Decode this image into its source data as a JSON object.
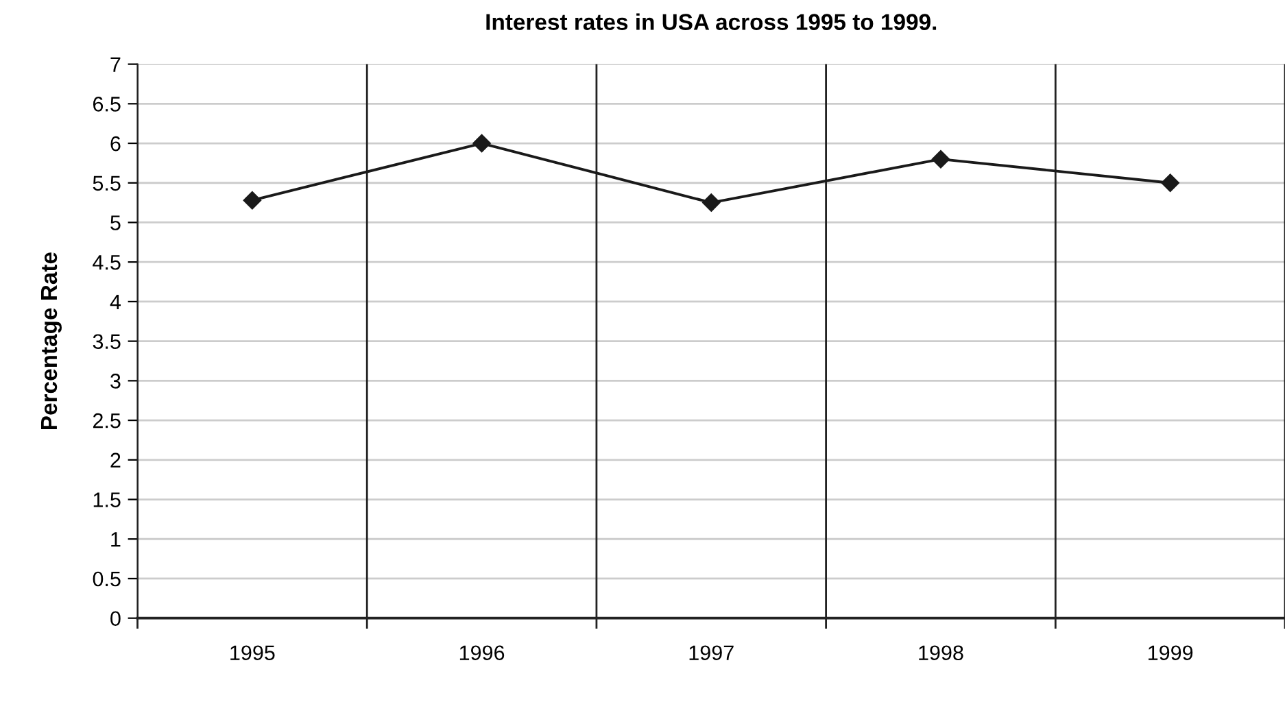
{
  "chart_data": {
    "type": "line",
    "title": "Interest rates in USA across 1995 to 1999.",
    "ylabel": "Percentage Rate",
    "categories": [
      "1995",
      "1996",
      "1997",
      "1998",
      "1999"
    ],
    "series": [
      {
        "color": "#1a1a1a",
        "values": [
          5.28,
          6.0,
          5.25,
          5.8,
          5.5
        ]
      }
    ],
    "ylim": [
      0,
      7
    ],
    "yticks": [
      0,
      0.5,
      1,
      1.5,
      2,
      2.5,
      3,
      3.5,
      4,
      4.5,
      5,
      5.5,
      6,
      6.5,
      7
    ],
    "grid": true,
    "marker": "diamond",
    "line_style": "solid"
  }
}
